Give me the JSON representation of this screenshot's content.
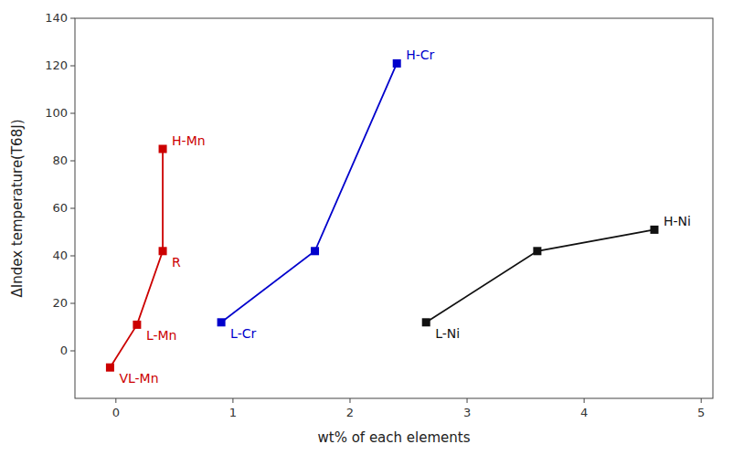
{
  "chart_data": {
    "type": "line",
    "xlabel": "wt% of each elements",
    "ylabel": "ΔIndex temperature(T68J)",
    "series": [
      {
        "color": "#cc0000",
        "x": [
          -0.05,
          0.18,
          0.4,
          0.4
        ],
        "values": [
          -7,
          11,
          42,
          85
        ],
        "labels": [
          "VL-Mn",
          "L-Mn",
          "R",
          "H-Mn"
        ]
      },
      {
        "color": "#0000cc",
        "x": [
          0.9,
          1.7,
          2.4
        ],
        "values": [
          12,
          42,
          121
        ],
        "labels": [
          "L-Cr",
          null,
          "H-Cr"
        ]
      },
      {
        "color": "#111111",
        "x": [
          2.65,
          3.6,
          4.6
        ],
        "values": [
          12,
          42,
          51
        ],
        "labels": [
          "L-Ni",
          null,
          "H-Ni"
        ]
      }
    ],
    "xlim": [
      -0.35,
      5.1
    ],
    "ylim": [
      -20,
      140
    ],
    "xticks": [
      0,
      1,
      2,
      3,
      4,
      5
    ],
    "yticks": [
      0,
      20,
      40,
      60,
      80,
      100,
      120,
      140
    ],
    "grid": false,
    "marker": "square",
    "line_style": "solid"
  }
}
